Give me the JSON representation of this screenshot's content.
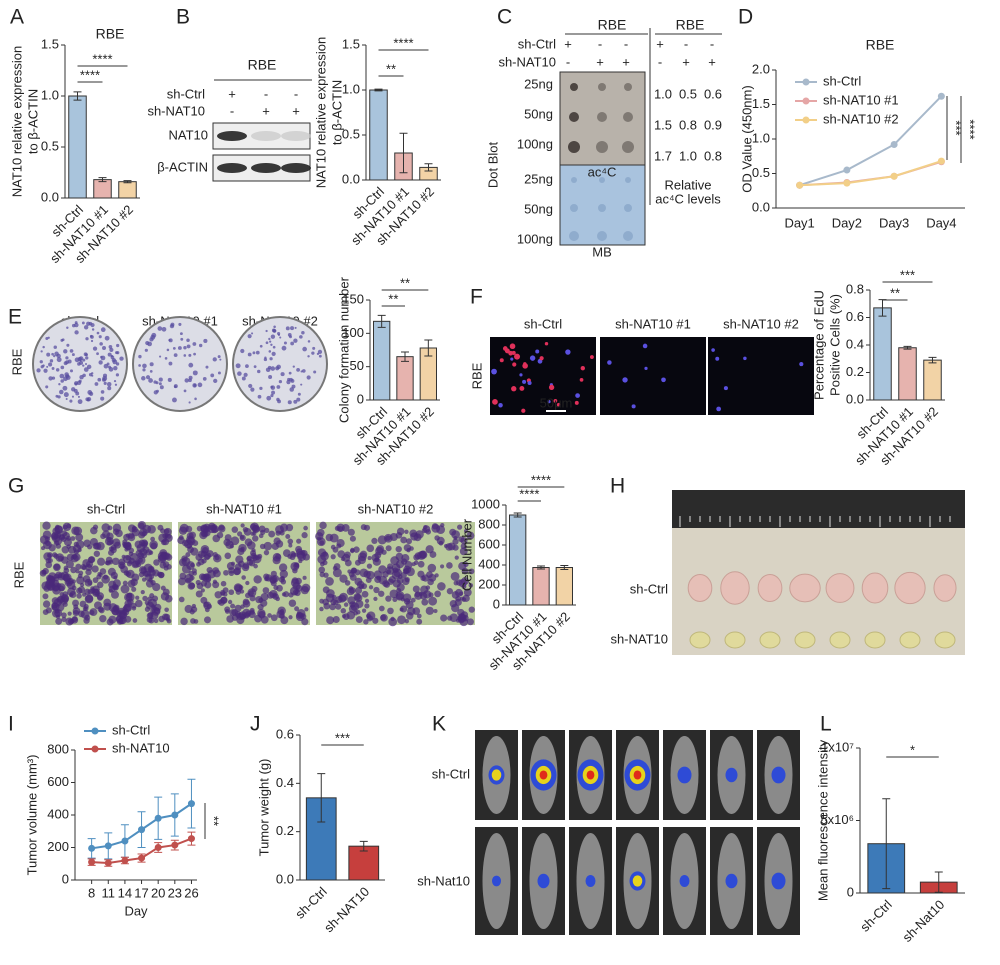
{
  "chart_data": [
    {
      "type": "bar",
      "title": "RBE",
      "ylabel": [
        "NAT10 relative expression",
        "to β-ACTIN"
      ],
      "categories": [
        "sh-Ctrl",
        "sh-NAT10 #1",
        "sh-NAT10 #2"
      ],
      "values": [
        1.0,
        0.18,
        0.16
      ],
      "errors": [
        0.04,
        0.02,
        0.01
      ],
      "colors": [
        "#a9c4dc",
        "#e6b3ae",
        "#f2d3a6"
      ],
      "ylim": [
        0,
        1.5
      ],
      "yticks": [
        {
          "value": 0,
          "label": "0.0"
        },
        0.5,
        {
          "value": 1,
          "label": "1.0"
        },
        1.5
      ],
      "annotations": [
        "****",
        "****"
      ]
    },
    {
      "type": "bar",
      "ylabel": [
        "NAT10 relative expression",
        "to β-ACTIN"
      ],
      "categories": [
        "sh-Ctrl",
        "sh-NAT10 #1",
        "sh-NAT10 #2"
      ],
      "values": [
        1.0,
        0.3,
        0.14
      ],
      "errors": [
        0.01,
        0.22,
        0.04
      ],
      "colors": [
        "#a9c4dc",
        "#e6b3ae",
        "#f2d3a6"
      ],
      "ylim": [
        0,
        1.5
      ],
      "yticks": [
        {
          "value": 0,
          "label": "0.0"
        },
        0.5,
        {
          "value": 1,
          "label": "1.0"
        },
        1.5
      ],
      "annotations": [
        "**",
        "****"
      ]
    },
    {
      "type": "line",
      "title": "RBE",
      "ylabel": "OD Value (450nm)",
      "categories": [
        "Day1",
        "Day2",
        "Day3",
        "Day4"
      ],
      "series": [
        {
          "name": "sh-Ctrl",
          "color": "#a8b9cb",
          "values": [
            0.33,
            0.55,
            0.92,
            1.62
          ]
        },
        {
          "name": "sh-NAT10 #1",
          "color": "#e5a6a6",
          "values": [
            0.33,
            0.37,
            0.46,
            0.67
          ]
        },
        {
          "name": "sh-NAT10 #2",
          "color": "#f2cf88",
          "values": [
            0.33,
            0.36,
            0.46,
            0.68
          ]
        }
      ],
      "ylim": [
        0,
        2
      ],
      "yticks": [
        {
          "value": 0,
          "label": "0.0"
        },
        0.5,
        {
          "value": 1,
          "label": "1.0"
        },
        1.5,
        {
          "value": 2,
          "label": "2.0"
        }
      ],
      "annotations": [
        "***",
        "****"
      ]
    },
    {
      "type": "bar",
      "ylabel": "Colony formation number",
      "categories": [
        "sh-Ctrl",
        "sh-NAT10 #1",
        "sh-NAT10 #2"
      ],
      "values": [
        118,
        65,
        78
      ],
      "errors": [
        9,
        7,
        12
      ],
      "colors": [
        "#a9c4dc",
        "#e6b3ae",
        "#f2d3a6"
      ],
      "ylim": [
        0,
        150
      ],
      "yticks": [
        0,
        50,
        100,
        150
      ],
      "annotations": [
        "**",
        "**"
      ]
    },
    {
      "type": "bar",
      "ylabel": [
        "Percentage of EdU",
        "Positive Cells (%)"
      ],
      "categories": [
        "sh-Ctrl",
        "sh-NAT10 #1",
        "sh-NAT10 #2"
      ],
      "values": [
        0.67,
        0.38,
        0.29
      ],
      "errors": [
        0.06,
        0.01,
        0.02
      ],
      "colors": [
        "#a9c4dc",
        "#e6b3ae",
        "#f2d3a6"
      ],
      "ylim": [
        0,
        0.8
      ],
      "yticks": [
        {
          "value": 0,
          "label": "0.0"
        },
        0.2,
        0.4,
        0.6,
        0.8
      ],
      "annotations": [
        "**",
        "***"
      ]
    },
    {
      "type": "bar",
      "ylabel": "Cell Number",
      "categories": [
        "sh-Ctrl",
        "sh-NAT10 #1",
        "sh-NAT10 #2"
      ],
      "values": [
        900,
        375,
        375
      ],
      "errors": [
        20,
        15,
        20
      ],
      "colors": [
        "#a9c4dc",
        "#e6b3ae",
        "#f2d3a6"
      ],
      "ylim": [
        0,
        1000
      ],
      "yticks": [
        0,
        200,
        400,
        600,
        800,
        1000
      ],
      "annotations": [
        "****",
        "****"
      ]
    },
    {
      "type": "line",
      "ylabel": "Tumor volume (mm³)",
      "xlabel": "Day",
      "x": [
        8,
        11,
        14,
        17,
        20,
        23,
        26
      ],
      "series": [
        {
          "name": "sh-Ctrl",
          "color": "#4f8fc0",
          "values": [
            195,
            210,
            240,
            310,
            380,
            400,
            470
          ],
          "errors": [
            60,
            80,
            100,
            110,
            130,
            130,
            150
          ]
        },
        {
          "name": "sh-NAT10",
          "color": "#c0504d",
          "values": [
            110,
            105,
            120,
            135,
            200,
            215,
            255
          ],
          "errors": [
            20,
            20,
            20,
            25,
            30,
            30,
            40
          ]
        }
      ],
      "xlim": [
        5,
        27
      ],
      "xticks": [
        8,
        11,
        14,
        17,
        20,
        23,
        26
      ],
      "ylim": [
        0,
        800
      ],
      "yticks": [
        0,
        200,
        400,
        600,
        800
      ],
      "annotations": [
        "**"
      ]
    },
    {
      "type": "bar",
      "ylabel": "Tumor weight (g)",
      "categories": [
        "sh-Ctrl",
        "sh-NAT10"
      ],
      "values": [
        0.34,
        0.14
      ],
      "errors": [
        0.1,
        0.02
      ],
      "colors": [
        "#3d7ab8",
        "#c63f3d"
      ],
      "ylim": [
        0,
        0.6
      ],
      "yticks": [
        {
          "value": 0,
          "label": "0.0"
        },
        0.2,
        0.4,
        0.6
      ],
      "annotations": [
        "***"
      ]
    },
    {
      "type": "bar",
      "ylabel": "Mean fluorescence intensity",
      "categories": [
        "sh-Ctrl",
        "sh-Nat10"
      ],
      "values": [
        3400000,
        750000
      ],
      "errors": [
        3100000,
        700000
      ],
      "colors": [
        "#3d7ab8",
        "#c63f3d"
      ],
      "ylim": [
        0,
        10000000
      ],
      "yticks": [
        0,
        {
          "value": 5000000,
          "label": "5x10⁶"
        },
        {
          "value": 10000000,
          "label": "1x10⁷"
        }
      ],
      "annotations": [
        "*"
      ]
    }
  ],
  "panels": {
    "letters": [
      "A",
      "B",
      "C",
      "D",
      "E",
      "F",
      "G",
      "H",
      "I",
      "J",
      "K",
      "L"
    ],
    "b_blot": {
      "title": "RBE",
      "rows": [
        "sh-Ctrl",
        "sh-NAT10"
      ],
      "signs": [
        [
          "+",
          "-",
          "-"
        ],
        [
          "-",
          "+",
          "+"
        ]
      ],
      "bands": [
        "NAT10",
        "β-ACTIN"
      ]
    },
    "c_blot": {
      "titles": [
        "RBE",
        "RBE"
      ],
      "rows": [
        "sh-Ctrl",
        "sh-NAT10"
      ],
      "signs": [
        [
          "+",
          "-",
          "-"
        ],
        [
          "-",
          "+",
          "+"
        ]
      ],
      "amounts": [
        "25ng",
        "50ng",
        "100ng"
      ],
      "side": "Dot Blot",
      "stains": [
        "ac⁴C",
        "MB"
      ],
      "levels": [
        [
          "1.0",
          "0.5",
          "0.6"
        ],
        [
          "1.5",
          "0.8",
          "0.9"
        ],
        [
          "1.7",
          "1.0",
          "0.8"
        ]
      ],
      "levels_label": [
        "Relative",
        "ac⁴C levels"
      ]
    },
    "e_images": {
      "columns": [
        "sh-Ctrl",
        "sh-NAT10 #1",
        "sh-NAT10 #2"
      ],
      "row": "RBE"
    },
    "f_images": {
      "columns": [
        "sh-Ctrl",
        "sh-NAT10 #1",
        "sh-NAT10 #2"
      ],
      "row": "RBE",
      "scale": "50μm"
    },
    "g_images": {
      "columns": [
        "sh-Ctrl",
        "sh-NAT10 #1",
        "sh-NAT10 #2"
      ],
      "row": "RBE"
    },
    "h_photo": {
      "rows": [
        "sh-Ctrl",
        "sh-NAT10"
      ]
    },
    "k_images": {
      "rows": [
        "sh-Ctrl",
        "sh-Nat10"
      ]
    }
  }
}
